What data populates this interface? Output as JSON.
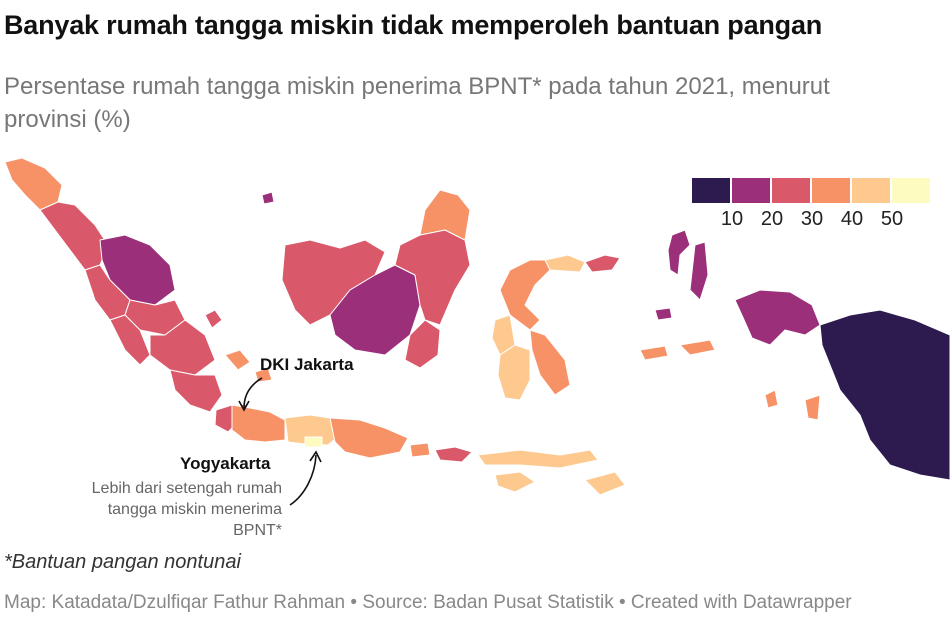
{
  "title": "Banyak rumah tangga miskin tidak memperoleh bantuan pangan",
  "subtitle": "Persentase rumah tangga miskin penerima BPNT* pada tahun 2021, menurut provinsi (%)",
  "legend": {
    "colors": [
      "#2d1a4e",
      "#9c2f7a",
      "#d9586a",
      "#f79267",
      "#fdc98f",
      "#fefbc0"
    ],
    "ticks": [
      "10",
      "20",
      "30",
      "40",
      "50"
    ]
  },
  "annotations": {
    "jakarta": "DKI Jakarta",
    "yogyakarta": "Yogyakarta",
    "yogyakarta_desc": "Lebih dari setengah rumah tangga miskin menerima BPNT*"
  },
  "note": "*Bantuan pangan nontunai",
  "footer": "Map: Katadata/Dzulfiqar Fathur Rahman • Source: Badan Pusat Statistik • Created with Datawrapper"
}
